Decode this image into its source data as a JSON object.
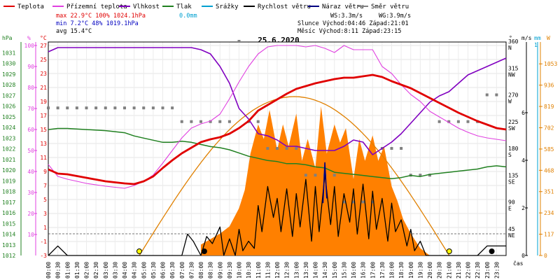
{
  "chart_data": {
    "type": "line",
    "title": "25.6.2020",
    "legend": [
      {
        "label": "Teplota",
        "color": "#e00000"
      },
      {
        "label": "Přízemní teplota",
        "color": "#e040e0"
      },
      {
        "label": "Vlhkost",
        "color": "#8000c0"
      },
      {
        "label": "Tlak",
        "color": "#208020"
      },
      {
        "label": "Srážky",
        "color": "#00a0d0"
      },
      {
        "label": "Rychlost větru",
        "color": "#000000"
      },
      {
        "label": "Náraz větru",
        "color": "#000080"
      },
      {
        "label": "Směr větru",
        "color": "#808080"
      }
    ],
    "stats": {
      "max": "max  22.9°C 100%  1024.1hPa",
      "max_rain": "0.0mm",
      "min": "min   7.2°C  48%  1019.1hPa",
      "avg": "avg 15.4°C",
      "ws": "WS:3.3m/s",
      "wg": "WG:3.9m/s",
      "sun": "Slunce Východ:04:46  Západ:21:01",
      "moon": "Měsíc  Východ:8:11   Západ:23:15"
    },
    "axis_units": {
      "hpa": "hPa",
      "pct": "%",
      "degc": "°C",
      "deg": "°",
      "ms": "m/s",
      "mm": "mm",
      "w": "W",
      "time": "čas"
    },
    "axes": {
      "hpa": [
        "1031",
        "1030",
        "1029",
        "1028",
        "1027",
        "1026",
        "1025",
        "1024",
        "1023",
        "1022",
        "1021",
        "1020",
        "1019",
        "1018",
        "1017",
        "1016",
        "1015",
        "1014",
        "1013",
        "1012"
      ],
      "pct": [
        "100",
        "90",
        "80",
        "70",
        "60",
        "50",
        "40",
        "30",
        "20",
        "10"
      ],
      "degc": [
        "27",
        "25",
        "23",
        "21",
        "19",
        "17",
        "15",
        "13",
        "11",
        "9",
        "7",
        "5",
        "3",
        "1",
        "-1",
        "-3"
      ],
      "deg": [
        "360",
        "315",
        "270",
        "225",
        "180",
        "135",
        "90",
        "45"
      ],
      "dir": [
        "N",
        "NW",
        "W",
        "SW",
        "S",
        "SE",
        "E",
        "NE"
      ],
      "ms": [
        "0",
        "2",
        "4",
        "6"
      ],
      "mm": [
        "1"
      ],
      "w": [
        "1053",
        "936",
        "819",
        "702",
        "585",
        "468",
        "351",
        "234",
        "117",
        "0"
      ]
    },
    "x_ticks": [
      "00:00",
      "00:30",
      "01:00",
      "01:30",
      "02:00",
      "02:30",
      "03:00",
      "03:30",
      "04:00",
      "04:30",
      "05:00",
      "05:30",
      "06:00",
      "06:30",
      "07:00",
      "07:30",
      "08:00",
      "08:30",
      "09:00",
      "09:30",
      "10:00",
      "10:30",
      "11:00",
      "11:30",
      "12:00",
      "12:30",
      "13:00",
      "13:30",
      "14:00",
      "14:30",
      "15:00",
      "15:30",
      "16:00",
      "16:30",
      "17:00",
      "17:30",
      "18:00",
      "18:30",
      "19:00",
      "19:30",
      "20:00",
      "20:30",
      "21:00",
      "21:30",
      "22:00",
      "22:30",
      "23:00",
      "23:30"
    ],
    "series": [
      {
        "name": "Teplota",
        "unit": "°C",
        "x": [
          0,
          0.5,
          1,
          2,
          3,
          4,
          4.5,
          5,
          5.5,
          6,
          6.5,
          7,
          7.5,
          8,
          8.5,
          9,
          9.5,
          10,
          10.5,
          11,
          11.5,
          12,
          12.5,
          13,
          13.5,
          14,
          14.5,
          15,
          15.5,
          16,
          16.5,
          17,
          17.5,
          18,
          18.5,
          19,
          19.5,
          20,
          20.5,
          21,
          21.5,
          22,
          22.5,
          23,
          23.5,
          24
        ],
        "y": [
          9.3,
          8.7,
          8.6,
          8.1,
          7.6,
          7.3,
          7.2,
          7.6,
          8.3,
          9.5,
          10.6,
          11.6,
          12.4,
          13.2,
          13.6,
          13.9,
          14.4,
          15.2,
          16.2,
          17.7,
          18.5,
          19.3,
          20.1,
          20.8,
          21.2,
          21.6,
          21.9,
          22.2,
          22.4,
          22.4,
          22.6,
          22.8,
          22.5,
          21.9,
          21.4,
          20.9,
          20.2,
          19.5,
          18.8,
          18.1,
          17.4,
          16.8,
          16.2,
          15.7,
          15.2,
          15.0
        ]
      },
      {
        "name": "Přízemní teplota",
        "unit": "°C",
        "x": [
          0,
          0.5,
          1,
          2,
          3,
          4,
          4.5,
          5,
          5.5,
          6,
          6.5,
          7,
          7.5,
          8,
          8.5,
          9,
          9.5,
          10,
          10.5,
          11,
          11.5,
          12,
          12.5,
          13,
          13.5,
          14,
          14.5,
          15,
          15.5,
          16,
          16.5,
          17,
          17.5,
          18,
          18.5,
          19,
          19.5,
          20,
          20.5,
          21,
          21.5,
          22,
          22.5,
          23,
          23.5,
          24
        ],
        "y": [
          10.0,
          8.3,
          7.9,
          7.3,
          6.9,
          6.6,
          7.0,
          7.6,
          8.5,
          10.2,
          12.0,
          13.8,
          15.2,
          15.8,
          16.2,
          17.2,
          19.4,
          21.8,
          24.0,
          25.8,
          26.8,
          27.0,
          27.0,
          27.0,
          26.8,
          27.0,
          26.6,
          26.0,
          27.0,
          26.4,
          26.4,
          26.4,
          24.0,
          23.0,
          21.4,
          20.0,
          19.0,
          17.6,
          16.8,
          16.0,
          15.2,
          14.6,
          14.1,
          13.8,
          13.6,
          13.4
        ]
      },
      {
        "name": "Vlhkost",
        "unit": "%",
        "x": [
          0,
          0.5,
          1,
          2,
          3,
          4,
          4.5,
          5,
          5.5,
          6,
          6.5,
          7,
          7.5,
          8,
          8.5,
          9,
          9.5,
          10,
          10.5,
          11,
          11.5,
          12,
          12.5,
          13,
          13.5,
          14,
          14.5,
          15,
          15.5,
          16,
          16.5,
          17,
          17.5,
          18,
          18.5,
          19,
          19.5,
          20,
          20.5,
          21,
          21.5,
          22,
          22.5,
          23,
          23.5,
          24
        ],
        "y": [
          97,
          99,
          99,
          99,
          99,
          99,
          99,
          99,
          99,
          99,
          99,
          99,
          99,
          98,
          96,
          90,
          82,
          70,
          65,
          58,
          57,
          55,
          52,
          52,
          51,
          50,
          50,
          50,
          52,
          55,
          54,
          48,
          51,
          54,
          58,
          63,
          68,
          73,
          76,
          78,
          82,
          86,
          88,
          90,
          92,
          94
        ]
      },
      {
        "name": "Tlak",
        "unit": "hPa",
        "x": [
          0,
          0.5,
          1,
          2,
          3,
          4,
          4.5,
          5,
          5.5,
          6,
          6.5,
          7,
          7.5,
          8,
          8.5,
          9,
          9.5,
          10,
          10.5,
          11,
          11.5,
          12,
          12.5,
          13,
          13.5,
          14,
          14.5,
          15,
          15.5,
          16,
          16.5,
          17,
          17.5,
          18,
          18.5,
          19,
          19.5,
          20,
          20.5,
          21,
          21.5,
          22,
          22.5,
          23,
          23.5,
          24
        ],
        "y": [
          1023.8,
          1023.9,
          1023.9,
          1023.8,
          1023.7,
          1023.5,
          1023.2,
          1023.0,
          1022.8,
          1022.6,
          1022.6,
          1022.7,
          1022.6,
          1022.4,
          1022.2,
          1022.1,
          1021.9,
          1021.6,
          1021.3,
          1021.1,
          1020.9,
          1020.8,
          1020.6,
          1020.6,
          1020.5,
          1020.3,
          1020.2,
          1019.8,
          1019.7,
          1019.6,
          1019.5,
          1019.4,
          1019.3,
          1019.2,
          1019.3,
          1019.5,
          1019.4,
          1019.6,
          1019.7,
          1019.8,
          1019.9,
          1020.0,
          1020.1,
          1020.3,
          1020.4,
          1020.3
        ]
      },
      {
        "name": "Náraz větru",
        "unit": "m/s",
        "x": [
          14.4,
          14.5,
          14.6
        ],
        "y": [
          2.2,
          3.9,
          2.4
        ]
      },
      {
        "name": "Rychlost větru",
        "unit": "m/s",
        "x": [
          0,
          0.5,
          1,
          1.5,
          2,
          2.5,
          3,
          3.5,
          4,
          4.5,
          5,
          5.5,
          6,
          6.5,
          7,
          7.3,
          7.6,
          8,
          8.3,
          8.6,
          9,
          9.2,
          9.5,
          9.8,
          10,
          10.2,
          10.5,
          10.8,
          11,
          11.2,
          11.5,
          11.8,
          12,
          12.2,
          12.5,
          12.8,
          13,
          13.2,
          13.5,
          13.8,
          14,
          14.2,
          14.5,
          14.8,
          15,
          15.2,
          15.5,
          15.8,
          16,
          16.2,
          16.5,
          16.8,
          17,
          17.2,
          17.5,
          17.8,
          18,
          18.2,
          18.5,
          18.8,
          19,
          19.2,
          19.5,
          19.8,
          20,
          20.5,
          21,
          21.5,
          22,
          22.5,
          23,
          23.5,
          24
        ],
        "y": [
          0,
          0.4,
          0,
          0,
          0,
          0,
          0,
          0,
          0,
          0,
          0,
          0,
          0,
          0,
          0,
          0.9,
          0.6,
          0,
          0.8,
          0.5,
          1.2,
          0,
          0.7,
          0,
          1.1,
          0.2,
          0.6,
          0.3,
          2.1,
          1.0,
          2.9,
          1.6,
          2.4,
          1.0,
          2.8,
          0.8,
          2.6,
          1.2,
          3.2,
          0.6,
          2.9,
          1.0,
          3.4,
          1.3,
          2.9,
          0.8,
          2.6,
          1.4,
          2.8,
          0.9,
          3.0,
          0.7,
          2.7,
          1.1,
          2.4,
          0.6,
          2.2,
          1.0,
          1.5,
          0.4,
          1.1,
          0.2,
          0.6,
          0,
          0,
          0,
          0,
          0,
          0,
          0,
          0.4,
          0.4,
          0.4
        ]
      },
      {
        "name": "Směr větru",
        "unit": "°",
        "x": [
          0,
          0.5,
          1,
          1.5,
          2,
          2.5,
          3,
          3.5,
          4,
          4.5,
          5,
          5.5,
          6,
          6.5,
          7,
          7.5,
          8,
          8.5,
          9,
          9.5,
          10,
          10.5,
          11,
          11.5,
          12,
          12.5,
          13,
          13.5,
          14,
          14.5,
          15,
          15.5,
          16,
          16.5,
          17,
          17.5,
          18,
          18.5,
          19,
          19.5,
          20,
          20.5,
          21,
          21.5,
          22,
          22.5,
          23,
          23.5
        ],
        "y": [
          248,
          248,
          248,
          248,
          248,
          248,
          248,
          248,
          248,
          248,
          248,
          248,
          248,
          248,
          225,
          225,
          225,
          225,
          225,
          225,
          360,
          225,
          225,
          180,
          180,
          180,
          180,
          135,
          135,
          135,
          135,
          90,
          90,
          90,
          90,
          180,
          180,
          180,
          135,
          135,
          135,
          225,
          225,
          225,
          225,
          225,
          270,
          270
        ]
      }
    ],
    "solar": {
      "name": "Sluneční záření",
      "unit": "W",
      "x": [
        8,
        8.5,
        9,
        9.5,
        10,
        10.3,
        10.6,
        11,
        11.3,
        11.6,
        12,
        12.3,
        12.6,
        13,
        13.3,
        13.6,
        14,
        14.3,
        14.6,
        15,
        15.3,
        15.6,
        16,
        16.3,
        16.6,
        17,
        17.3,
        17.6,
        18,
        18.3,
        18.6,
        19,
        19.5,
        20
      ],
      "y": [
        60,
        90,
        120,
        160,
        260,
        360,
        560,
        720,
        640,
        800,
        580,
        720,
        600,
        780,
        520,
        640,
        480,
        820,
        560,
        720,
        620,
        700,
        420,
        640,
        520,
        660,
        520,
        600,
        380,
        300,
        200,
        120,
        40,
        0
      ]
    },
    "clear_sky": {
      "x0": 4.77,
      "x1": 21.02,
      "peak": 873
    },
    "sun_markers": [
      4.77,
      21.02
    ],
    "moon_markers": [
      8.18,
      23.25
    ]
  }
}
